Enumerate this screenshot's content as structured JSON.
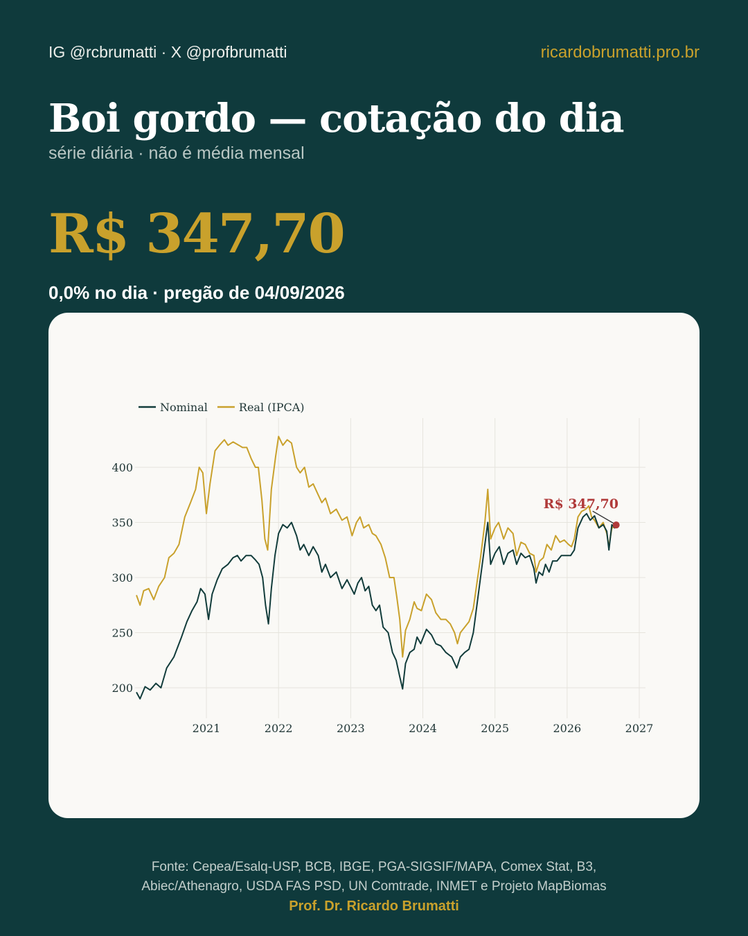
{
  "header": {
    "handles": "IG @rcbrumatti · X @profbrumatti",
    "site": "ricardobrumatti.pro.br"
  },
  "title": "Boi gordo — cotação do dia",
  "subtitle": "série diária · não é média mensal",
  "price": "R$ 347,70",
  "change": "0,0% no dia · pregão de 04/09/2026",
  "colors": {
    "background": "#0f3a3c",
    "accent": "#c9a12c",
    "nominal": "#123c3b",
    "real": "#c9a12c",
    "callout": "#b03a3a",
    "card": "#faf9f6"
  },
  "chart_data": {
    "type": "line",
    "title": "",
    "xlabel": "",
    "ylabel": "",
    "xlim": [
      2020.0,
      2027.0
    ],
    "ylim": [
      182,
      435
    ],
    "x_ticks": [
      2021,
      2022,
      2023,
      2024,
      2025,
      2026,
      2027
    ],
    "x_tick_labels": [
      "2021",
      "2022",
      "2023",
      "2024",
      "2025",
      "2026",
      "2027"
    ],
    "y_ticks": [
      200,
      250,
      300,
      350,
      400
    ],
    "y_tick_labels": [
      "200",
      "250",
      "300",
      "350",
      "400"
    ],
    "grid": true,
    "legend": "top-left",
    "series": [
      {
        "name": "Nominal",
        "color": "#123c3b",
        "points": [
          [
            2020.03,
            196
          ],
          [
            2020.08,
            190
          ],
          [
            2020.15,
            201
          ],
          [
            2020.22,
            198
          ],
          [
            2020.3,
            204
          ],
          [
            2020.37,
            200
          ],
          [
            2020.45,
            218
          ],
          [
            2020.55,
            228
          ],
          [
            2020.65,
            245
          ],
          [
            2020.73,
            260
          ],
          [
            2020.8,
            270
          ],
          [
            2020.87,
            278
          ],
          [
            2020.92,
            290
          ],
          [
            2020.98,
            285
          ],
          [
            2021.03,
            262
          ],
          [
            2021.08,
            285
          ],
          [
            2021.15,
            298
          ],
          [
            2021.22,
            308
          ],
          [
            2021.3,
            312
          ],
          [
            2021.37,
            318
          ],
          [
            2021.43,
            320
          ],
          [
            2021.48,
            315
          ],
          [
            2021.55,
            320
          ],
          [
            2021.62,
            320
          ],
          [
            2021.68,
            316
          ],
          [
            2021.73,
            312
          ],
          [
            2021.78,
            300
          ],
          [
            2021.82,
            275
          ],
          [
            2021.86,
            258
          ],
          [
            2021.9,
            290
          ],
          [
            2021.95,
            320
          ],
          [
            2022.0,
            340
          ],
          [
            2022.06,
            348
          ],
          [
            2022.12,
            345
          ],
          [
            2022.18,
            350
          ],
          [
            2022.25,
            338
          ],
          [
            2022.3,
            325
          ],
          [
            2022.35,
            330
          ],
          [
            2022.42,
            320
          ],
          [
            2022.48,
            328
          ],
          [
            2022.55,
            320
          ],
          [
            2022.6,
            305
          ],
          [
            2022.65,
            312
          ],
          [
            2022.72,
            300
          ],
          [
            2022.8,
            305
          ],
          [
            2022.88,
            290
          ],
          [
            2022.95,
            298
          ],
          [
            2023.05,
            285
          ],
          [
            2023.1,
            295
          ],
          [
            2023.15,
            300
          ],
          [
            2023.2,
            288
          ],
          [
            2023.25,
            292
          ],
          [
            2023.3,
            275
          ],
          [
            2023.35,
            270
          ],
          [
            2023.4,
            275
          ],
          [
            2023.45,
            255
          ],
          [
            2023.52,
            250
          ],
          [
            2023.58,
            232
          ],
          [
            2023.63,
            225
          ],
          [
            2023.68,
            210
          ],
          [
            2023.72,
            199
          ],
          [
            2023.76,
            222
          ],
          [
            2023.82,
            232
          ],
          [
            2023.88,
            235
          ],
          [
            2023.92,
            246
          ],
          [
            2023.97,
            240
          ],
          [
            2024.05,
            253
          ],
          [
            2024.12,
            248
          ],
          [
            2024.18,
            240
          ],
          [
            2024.25,
            238
          ],
          [
            2024.32,
            232
          ],
          [
            2024.4,
            228
          ],
          [
            2024.47,
            218
          ],
          [
            2024.52,
            228
          ],
          [
            2024.58,
            232
          ],
          [
            2024.64,
            235
          ],
          [
            2024.7,
            250
          ],
          [
            2024.75,
            275
          ],
          [
            2024.8,
            300
          ],
          [
            2024.86,
            330
          ],
          [
            2024.9,
            350
          ],
          [
            2024.94,
            312
          ],
          [
            2025.0,
            322
          ],
          [
            2025.06,
            328
          ],
          [
            2025.12,
            312
          ],
          [
            2025.18,
            322
          ],
          [
            2025.25,
            325
          ],
          [
            2025.3,
            312
          ],
          [
            2025.36,
            322
          ],
          [
            2025.42,
            318
          ],
          [
            2025.48,
            320
          ],
          [
            2025.54,
            308
          ],
          [
            2025.57,
            295
          ],
          [
            2025.61,
            305
          ],
          [
            2025.66,
            302
          ],
          [
            2025.7,
            312
          ],
          [
            2025.75,
            305
          ],
          [
            2025.8,
            315
          ],
          [
            2025.86,
            315
          ],
          [
            2025.92,
            320
          ],
          [
            2026.0,
            320
          ],
          [
            2026.05,
            320
          ],
          [
            2026.1,
            325
          ],
          [
            2026.15,
            345
          ],
          [
            2026.22,
            355
          ],
          [
            2026.27,
            358
          ],
          [
            2026.32,
            352
          ],
          [
            2026.38,
            356
          ],
          [
            2026.44,
            345
          ],
          [
            2026.5,
            348
          ],
          [
            2026.55,
            342
          ],
          [
            2026.58,
            325
          ],
          [
            2026.62,
            348
          ],
          [
            2026.66,
            345
          ],
          [
            2026.68,
            347.7
          ]
        ]
      },
      {
        "name": "Real (IPCA)",
        "color": "#c9a12c",
        "points": [
          [
            2020.03,
            284
          ],
          [
            2020.08,
            275
          ],
          [
            2020.13,
            288
          ],
          [
            2020.2,
            290
          ],
          [
            2020.27,
            280
          ],
          [
            2020.34,
            292
          ],
          [
            2020.42,
            300
          ],
          [
            2020.48,
            318
          ],
          [
            2020.55,
            322
          ],
          [
            2020.62,
            330
          ],
          [
            2020.7,
            355
          ],
          [
            2020.78,
            368
          ],
          [
            2020.85,
            380
          ],
          [
            2020.9,
            400
          ],
          [
            2020.95,
            395
          ],
          [
            2021.0,
            358
          ],
          [
            2021.05,
            385
          ],
          [
            2021.12,
            415
          ],
          [
            2021.18,
            420
          ],
          [
            2021.25,
            425
          ],
          [
            2021.3,
            420
          ],
          [
            2021.37,
            423
          ],
          [
            2021.45,
            420
          ],
          [
            2021.5,
            418
          ],
          [
            2021.56,
            418
          ],
          [
            2021.62,
            408
          ],
          [
            2021.68,
            400
          ],
          [
            2021.72,
            400
          ],
          [
            2021.77,
            370
          ],
          [
            2021.81,
            335
          ],
          [
            2021.85,
            325
          ],
          [
            2021.9,
            380
          ],
          [
            2021.96,
            410
          ],
          [
            2022.0,
            428
          ],
          [
            2022.06,
            420
          ],
          [
            2022.12,
            425
          ],
          [
            2022.18,
            422
          ],
          [
            2022.25,
            400
          ],
          [
            2022.3,
            395
          ],
          [
            2022.36,
            400
          ],
          [
            2022.42,
            382
          ],
          [
            2022.48,
            385
          ],
          [
            2022.55,
            375
          ],
          [
            2022.6,
            368
          ],
          [
            2022.65,
            372
          ],
          [
            2022.72,
            358
          ],
          [
            2022.8,
            362
          ],
          [
            2022.88,
            352
          ],
          [
            2022.95,
            355
          ],
          [
            2023.02,
            338
          ],
          [
            2023.08,
            350
          ],
          [
            2023.13,
            355
          ],
          [
            2023.18,
            345
          ],
          [
            2023.25,
            348
          ],
          [
            2023.3,
            340
          ],
          [
            2023.35,
            338
          ],
          [
            2023.42,
            330
          ],
          [
            2023.48,
            318
          ],
          [
            2023.54,
            300
          ],
          [
            2023.6,
            300
          ],
          [
            2023.64,
            282
          ],
          [
            2023.68,
            262
          ],
          [
            2023.72,
            228
          ],
          [
            2023.76,
            252
          ],
          [
            2023.82,
            262
          ],
          [
            2023.88,
            278
          ],
          [
            2023.92,
            272
          ],
          [
            2023.98,
            270
          ],
          [
            2024.05,
            285
          ],
          [
            2024.12,
            280
          ],
          [
            2024.18,
            268
          ],
          [
            2024.25,
            262
          ],
          [
            2024.32,
            262
          ],
          [
            2024.38,
            258
          ],
          [
            2024.44,
            250
          ],
          [
            2024.48,
            240
          ],
          [
            2024.52,
            250
          ],
          [
            2024.58,
            255
          ],
          [
            2024.64,
            260
          ],
          [
            2024.7,
            272
          ],
          [
            2024.75,
            295
          ],
          [
            2024.8,
            318
          ],
          [
            2024.86,
            350
          ],
          [
            2024.9,
            380
          ],
          [
            2024.94,
            335
          ],
          [
            2025.0,
            345
          ],
          [
            2025.05,
            350
          ],
          [
            2025.12,
            335
          ],
          [
            2025.18,
            345
          ],
          [
            2025.25,
            340
          ],
          [
            2025.3,
            320
          ],
          [
            2025.36,
            332
          ],
          [
            2025.42,
            330
          ],
          [
            2025.48,
            322
          ],
          [
            2025.54,
            320
          ],
          [
            2025.57,
            305
          ],
          [
            2025.62,
            315
          ],
          [
            2025.67,
            318
          ],
          [
            2025.72,
            330
          ],
          [
            2025.78,
            325
          ],
          [
            2025.84,
            338
          ],
          [
            2025.9,
            332
          ],
          [
            2025.96,
            334
          ],
          [
            2026.02,
            330
          ],
          [
            2026.06,
            328
          ],
          [
            2026.1,
            335
          ],
          [
            2026.15,
            355
          ],
          [
            2026.2,
            360
          ],
          [
            2026.26,
            362
          ],
          [
            2026.3,
            365
          ],
          [
            2026.34,
            355
          ],
          [
            2026.38,
            352
          ],
          [
            2026.44,
            345
          ],
          [
            2026.5,
            350
          ],
          [
            2026.55,
            340
          ],
          [
            2026.58,
            328
          ],
          [
            2026.62,
            345
          ],
          [
            2026.66,
            346
          ],
          [
            2026.68,
            347.7
          ]
        ]
      }
    ],
    "annotation": {
      "label": "R$ 347,70",
      "x": 2026.68,
      "y": 347.7,
      "color": "#b03a3a"
    }
  },
  "footer": {
    "source_line1": "Fonte: Cepea/Esalq-USP, BCB, IBGE, PGA-SIGSIF/MAPA, Comex Stat, B3,",
    "source_line2": "Abiec/Athenagro, USDA FAS PSD, UN Comtrade, INMET e Projeto MapBiomas",
    "author": "Prof. Dr. Ricardo Brumatti"
  }
}
